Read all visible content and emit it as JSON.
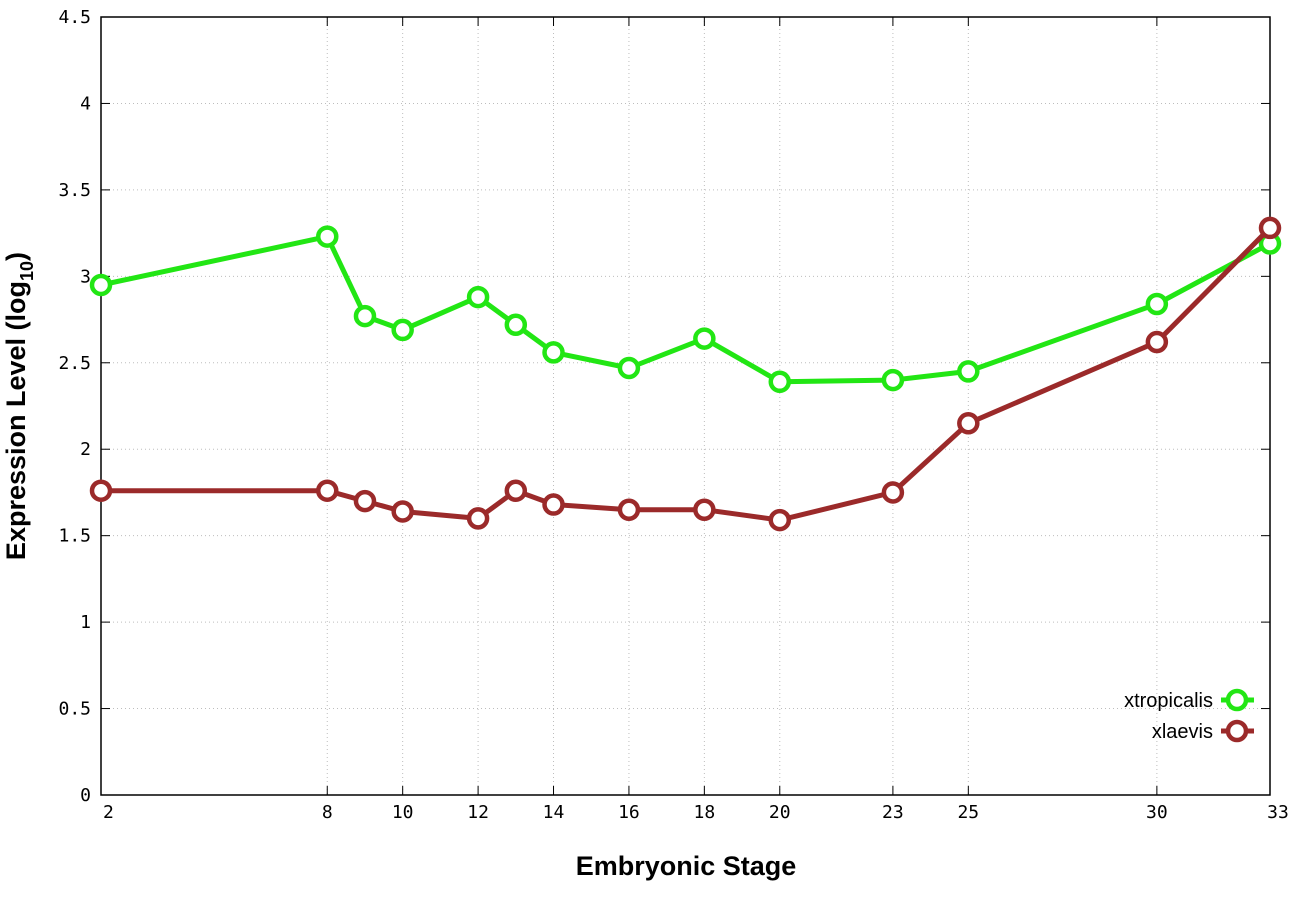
{
  "chart_data": {
    "type": "line",
    "xlabel": "Embryonic Stage",
    "ylabel": "Expression Level (log",
    "ylabel_subscript": "10",
    "ylabel_close": ")",
    "ylim": [
      0,
      4.5
    ],
    "xlim": [
      2,
      33
    ],
    "x_ticks": [
      2,
      8,
      10,
      12,
      14,
      16,
      18,
      20,
      23,
      25,
      30,
      33
    ],
    "y_ticks": [
      "0",
      "0.5",
      "1",
      "1.5",
      "2",
      "2.5",
      "3",
      "3.5",
      "4",
      "4.5"
    ],
    "grid": true,
    "legend_position": "bottom-right",
    "x": [
      2,
      8,
      9,
      10,
      12,
      13,
      14,
      16,
      18,
      20,
      23,
      25,
      30,
      33
    ],
    "series": [
      {
        "name": "xtropicalis",
        "color": "#22e614",
        "values": [
          2.95,
          3.23,
          2.77,
          2.69,
          2.88,
          2.72,
          2.56,
          2.47,
          2.64,
          2.39,
          2.4,
          2.45,
          2.84,
          3.19
        ]
      },
      {
        "name": "xlaevis",
        "color": "#9b2a2a",
        "values": [
          1.76,
          1.76,
          1.7,
          1.64,
          1.6,
          1.76,
          1.68,
          1.65,
          1.65,
          1.59,
          1.75,
          2.15,
          2.62,
          3.28
        ]
      }
    ]
  }
}
